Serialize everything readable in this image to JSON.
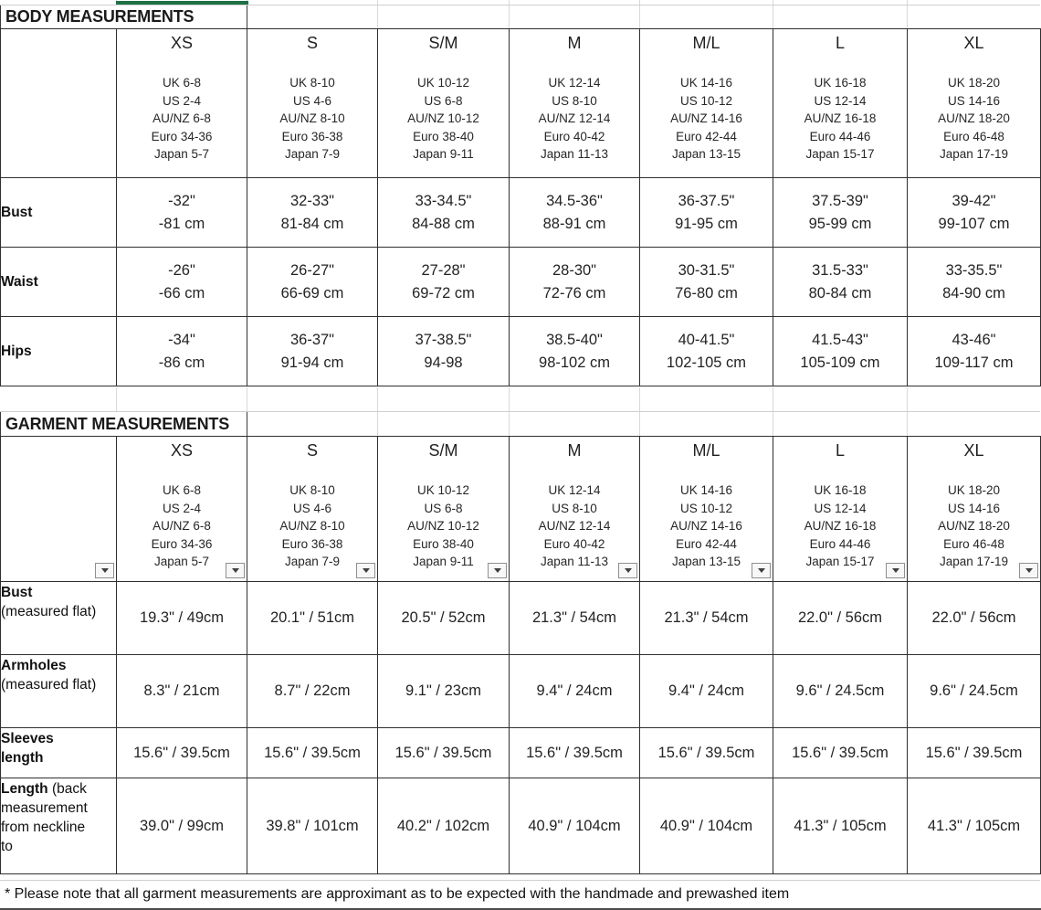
{
  "accent": {
    "selection_green": "#1e7145",
    "gridline": "#d9d9d9",
    "table_border": "#2f2f2f"
  },
  "body_section": {
    "title": "BODY MEASUREMENTS",
    "sizes": [
      {
        "label": "XS",
        "intl": [
          "UK 6-8",
          "US 2-4",
          "AU/NZ 6-8",
          "Euro 34-36",
          "Japan 5-7"
        ]
      },
      {
        "label": "S",
        "intl": [
          "UK 8-10",
          "US 4-6",
          "AU/NZ 8-10",
          "Euro 36-38",
          "Japan 7-9"
        ]
      },
      {
        "label": "S/M",
        "intl": [
          "UK 10-12",
          "US 6-8",
          "AU/NZ 10-12",
          "Euro 38-40",
          "Japan 9-11"
        ]
      },
      {
        "label": "M",
        "intl": [
          "UK 12-14",
          "US 8-10",
          "AU/NZ 12-14",
          "Euro 40-42",
          "Japan 11-13"
        ]
      },
      {
        "label": "M/L",
        "intl": [
          "UK 14-16",
          "US 10-12",
          "AU/NZ 14-16",
          "Euro 42-44",
          "Japan 13-15"
        ]
      },
      {
        "label": "L",
        "intl": [
          "UK 16-18",
          "US 12-14",
          "AU/NZ 16-18",
          "Euro 44-46",
          "Japan 15-17"
        ]
      },
      {
        "label": "XL",
        "intl": [
          "UK 18-20",
          "US 14-16",
          "AU/NZ 18-20",
          "Euro 46-48",
          "Japan 17-19"
        ]
      }
    ],
    "rows": [
      {
        "label_bold": "Bust",
        "label_rest": "",
        "values": [
          [
            "-32\"",
            "-81 cm"
          ],
          [
            "32-33\"",
            "81-84 cm"
          ],
          [
            "33-34.5\"",
            "84-88 cm"
          ],
          [
            "34.5-36\"",
            "88-91 cm"
          ],
          [
            "36-37.5\"",
            "91-95 cm"
          ],
          [
            "37.5-39\"",
            "95-99 cm"
          ],
          [
            "39-42\"",
            "99-107 cm"
          ]
        ]
      },
      {
        "label_bold": "Waist",
        "label_rest": "",
        "values": [
          [
            "-26\"",
            "-66 cm"
          ],
          [
            "26-27\"",
            "66-69 cm"
          ],
          [
            "27-28\"",
            "69-72 cm"
          ],
          [
            "28-30\"",
            "72-76 cm"
          ],
          [
            "30-31.5\"",
            "76-80 cm"
          ],
          [
            "31.5-33\"",
            "80-84 cm"
          ],
          [
            "33-35.5\"",
            "84-90 cm"
          ]
        ]
      },
      {
        "label_bold": "Hips",
        "label_rest": "",
        "values": [
          [
            "-34\"",
            "-86 cm"
          ],
          [
            "36-37\"",
            "91-94 cm"
          ],
          [
            "37-38.5\"",
            "94-98"
          ],
          [
            "38.5-40\"",
            "98-102 cm"
          ],
          [
            "40-41.5\"",
            "102-105 cm"
          ],
          [
            "41.5-43\"",
            "105-109 cm"
          ],
          [
            "43-46\"",
            "109-117 cm"
          ]
        ]
      }
    ]
  },
  "garment_section": {
    "title": "GARMENT MEASUREMENTS",
    "sizes": [
      {
        "label": "XS",
        "intl": [
          "UK 6-8",
          "US 2-4",
          "AU/NZ 6-8",
          "Euro 34-36",
          "Japan 5-7"
        ]
      },
      {
        "label": "S",
        "intl": [
          "UK 8-10",
          "US 4-6",
          "AU/NZ 8-10",
          "Euro 36-38",
          "Japan 7-9"
        ]
      },
      {
        "label": "S/M",
        "intl": [
          "UK 10-12",
          "US 6-8",
          "AU/NZ 10-12",
          "Euro 38-40",
          "Japan 9-11"
        ]
      },
      {
        "label": "M",
        "intl": [
          "UK 12-14",
          "US 8-10",
          "AU/NZ 12-14",
          "Euro 40-42",
          "Japan 11-13"
        ]
      },
      {
        "label": "M/L",
        "intl": [
          "UK 14-16",
          "US 10-12",
          "AU/NZ 14-16",
          "Euro 42-44",
          "Japan 13-15"
        ]
      },
      {
        "label": "L",
        "intl": [
          "UK 16-18",
          "US 12-14",
          "AU/NZ 16-18",
          "Euro 44-46",
          "Japan 15-17"
        ]
      },
      {
        "label": "XL",
        "intl": [
          "UK 18-20",
          "US 14-16",
          "AU/NZ 18-20",
          "Euro 46-48",
          "Japan 17-19"
        ]
      }
    ],
    "rows": [
      {
        "label_bold": "Bust",
        "label_rest": "(measured flat)",
        "values": [
          "19.3\" / 49cm",
          "20.1\" / 51cm",
          "20.5\" / 52cm",
          "21.3\" / 54cm",
          "21.3\" / 54cm",
          "22.0\" / 56cm",
          "22.0\" / 56cm"
        ]
      },
      {
        "label_bold": "Armholes",
        "label_rest": "(measured flat)",
        "values": [
          "8.3\" / 21cm",
          "8.7\" / 22cm",
          "9.1\" / 23cm",
          "9.4\" / 24cm",
          "9.4\" / 24cm",
          "9.6\" / 24.5cm",
          "9.6\" / 24.5cm"
        ]
      },
      {
        "label_bold": "Sleeves length",
        "label_rest": "",
        "values": [
          "15.6\" / 39.5cm",
          "15.6\" / 39.5cm",
          "15.6\" / 39.5cm",
          "15.6\" / 39.5cm",
          "15.6\" / 39.5cm",
          "15.6\" / 39.5cm",
          "15.6\" / 39.5cm"
        ]
      },
      {
        "label_bold": "Length",
        "label_rest": "(back measurement from neckline to",
        "values": [
          "39.0\" / 99cm",
          "39.8\" / 101cm",
          "40.2\" / 102cm",
          "40.9\" / 104cm",
          "40.9\" / 104cm",
          "41.3\" / 105cm",
          "41.3\" / 105cm"
        ]
      }
    ]
  },
  "footer": {
    "note": "* Please note that all garment measurements are approximant as to be expected with the handmade and prewashed item"
  }
}
